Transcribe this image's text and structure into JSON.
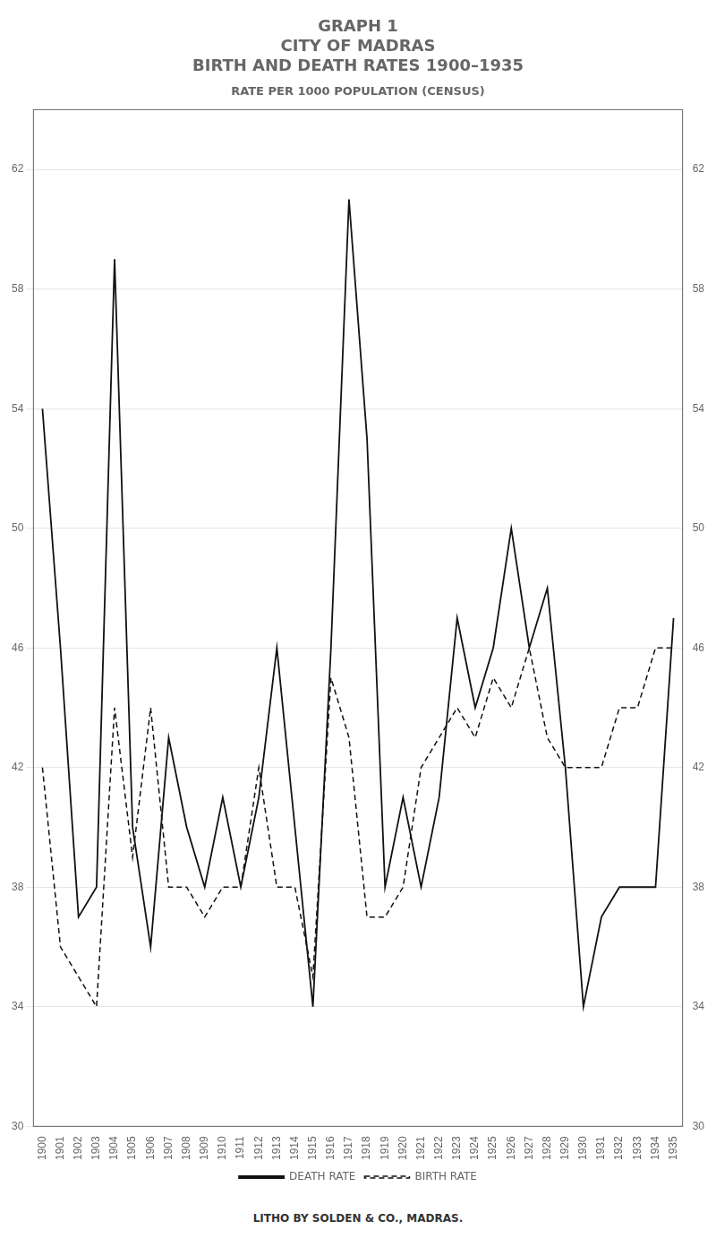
{
  "chart_data": {
    "type": "line",
    "title": [
      "GRAPH 1",
      "CITY OF MADRAS",
      "BIRTH AND DEATH RATES 1900–1935"
    ],
    "subtitle": "RATE PER 1000 POPULATION (CENSUS)",
    "annotations": [
      "LITHO BY SOLDEN & CO., MADRAS."
    ],
    "x": [
      1900,
      1901,
      1902,
      1903,
      1904,
      1905,
      1906,
      1907,
      1908,
      1909,
      1910,
      1911,
      1912,
      1913,
      1914,
      1915,
      1916,
      1917,
      1918,
      1919,
      1920,
      1921,
      1922,
      1923,
      1924,
      1925,
      1926,
      1927,
      1928,
      1929,
      1930,
      1931,
      1932,
      1933,
      1934,
      1935
    ],
    "series": [
      {
        "name": "DEATH RATE",
        "color": "#111111",
        "line_style": "solid",
        "values": [
          54,
          46,
          37,
          38,
          59,
          40,
          36,
          43,
          40,
          38,
          41,
          38,
          41,
          46,
          40,
          34,
          46,
          61,
          53,
          38,
          41,
          38,
          41,
          47,
          44,
          46,
          50,
          46,
          48,
          42,
          34,
          37,
          38,
          38,
          38,
          47
        ]
      },
      {
        "name": "BIRTH RATE",
        "color": "#111111",
        "line_style": "dashed",
        "values": [
          42,
          36,
          35,
          34,
          44,
          39,
          44,
          38,
          38,
          37,
          38,
          38,
          42,
          38,
          38,
          35,
          45,
          43,
          37,
          37,
          38,
          42,
          43,
          44,
          43,
          45,
          44,
          46,
          43,
          42,
          42,
          42,
          44,
          44,
          46,
          46
        ]
      }
    ],
    "xlim": [
      1899.5,
      1935.5
    ],
    "xticks": [
      1900,
      1901,
      1902,
      1903,
      1904,
      1905,
      1906,
      1907,
      1908,
      1909,
      1910,
      1911,
      1912,
      1913,
      1914,
      1915,
      1916,
      1917,
      1918,
      1919,
      1920,
      1921,
      1922,
      1923,
      1924,
      1925,
      1926,
      1927,
      1928,
      1929,
      1930,
      1931,
      1932,
      1933,
      1934,
      1935
    ],
    "ylim": [
      30,
      64
    ],
    "yticks": [
      30,
      34,
      38,
      42,
      46,
      50,
      54,
      58,
      62
    ],
    "y2lim": [
      30,
      64
    ],
    "y2ticks": [
      30,
      34,
      38,
      42,
      46,
      50,
      54,
      58,
      62
    ],
    "grid": true,
    "legend": "bottom"
  }
}
